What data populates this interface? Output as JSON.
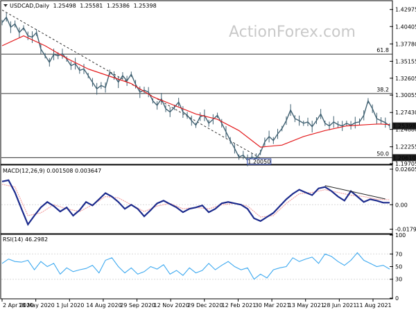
{
  "colors": {
    "price": "#3f6071",
    "ma": "#e31a1c",
    "macd": "#1b2a8c",
    "signal": "#f4a0a0",
    "rsi": "#3da9f0",
    "level_line": "#303030",
    "trend_dash": "#303030",
    "current_box": "#1f1f1f",
    "low_box": "#1f3aa6",
    "grid": "#d8d8d8",
    "watermark": "#c9c9c9"
  },
  "watermark": "ActionForex.com",
  "chart_data": [
    {
      "type": "line",
      "title": "USDCAD,Daily",
      "ohlc": {
        "open": "1.25498",
        "high": "1.25581",
        "low": "1.25386",
        "close": "1.25398"
      },
      "ylim": [
        1.1971,
        1.442
      ],
      "y_ticks": [
        "1.42975",
        "1.40405",
        "1.37780",
        "1.35155",
        "1.32605",
        "1.30055",
        "1.27430",
        "1.24880",
        "1.22255",
        "1.19705"
      ],
      "x_ticks": [
        "2 Apr 2020",
        "18 May 2020",
        "1 Jul 2020",
        "14 Aug 2020",
        "29 Sep 2020",
        "12 Nov 2020",
        "29 Dec 2020",
        "12 Feb 2021",
        "30 Mar 2021",
        "13 May 2021",
        "28 Jun 2021",
        "11 Aug 2021"
      ],
      "series": [
        {
          "style": "close",
          "x": [
            0,
            4,
            8,
            12,
            16,
            20,
            24,
            28,
            32,
            36,
            40,
            44,
            48,
            52,
            56,
            60,
            64,
            68,
            72,
            76,
            80,
            84,
            88,
            92,
            96,
            100,
            104,
            108,
            112,
            116,
            120,
            124,
            128,
            132,
            136,
            140,
            144,
            148,
            152,
            156,
            160,
            164,
            168,
            172,
            176,
            180,
            184,
            188,
            192,
            196,
            200,
            204,
            208,
            212,
            216,
            220,
            224,
            228,
            232,
            236,
            240,
            244,
            248,
            252,
            256,
            260,
            264,
            268,
            272,
            276,
            280,
            284,
            288,
            292,
            296,
            300,
            304,
            308,
            312,
            316,
            320,
            324,
            328,
            332,
            336,
            340,
            344,
            348,
            352,
            356,
            360
          ],
          "values": [
            1.41,
            1.418,
            1.403,
            1.408,
            1.395,
            1.402,
            1.39,
            1.388,
            1.395,
            1.37,
            1.36,
            1.35,
            1.362,
            1.36,
            1.363,
            1.355,
            1.345,
            1.348,
            1.338,
            1.34,
            1.33,
            1.32,
            1.31,
            1.315,
            1.312,
            1.335,
            1.33,
            1.32,
            1.33,
            1.322,
            1.332,
            1.317,
            1.305,
            1.308,
            1.305,
            1.292,
            1.285,
            1.295,
            1.28,
            1.275,
            1.282,
            1.29,
            1.275,
            1.27,
            1.262,
            1.255,
            1.268,
            1.27,
            1.258,
            1.264,
            1.27,
            1.258,
            1.245,
            1.232,
            1.22,
            1.207,
            1.21,
            1.202,
            1.207,
            1.205,
            1.214,
            1.23,
            1.238,
            1.232,
            1.242,
            1.25,
            1.262,
            1.278,
            1.265,
            1.262,
            1.258,
            1.26,
            1.253,
            1.262,
            1.272,
            1.258,
            1.254,
            1.26,
            1.256,
            1.254,
            1.258,
            1.255,
            1.259,
            1.26,
            1.27,
            1.292,
            1.28,
            1.265,
            1.262,
            1.259,
            1.254
          ]
        },
        {
          "style": "moving-average",
          "x": [
            0,
            20,
            40,
            60,
            80,
            100,
            120,
            140,
            160,
            180,
            200,
            220,
            240,
            260,
            280,
            300,
            320,
            340,
            350,
            360
          ],
          "values": [
            1.375,
            1.39,
            1.375,
            1.356,
            1.34,
            1.329,
            1.318,
            1.298,
            1.285,
            1.272,
            1.264,
            1.247,
            1.222,
            1.225,
            1.238,
            1.247,
            1.254,
            1.256,
            1.257,
            1.256
          ]
        }
      ],
      "levels": [
        {
          "label": "61.8",
          "value": 1.3623
        },
        {
          "label": "38.2",
          "value": 1.303
        },
        {
          "label": "50.0",
          "value": 1.2061
        }
      ],
      "trendline": {
        "x": [
          0,
          242
        ],
        "values": [
          1.429,
          1.2035
        ]
      },
      "current_label": "1.25398",
      "support_label": "1.20610",
      "low_label": "1.20050"
    },
    {
      "type": "line",
      "title": "MACD(12,26,9) 0.001508 0.003647",
      "ylim": [
        -0.0207,
        0.0286
      ],
      "y_ticks": [
        "0.026055",
        "0.00",
        "-0.017914"
      ],
      "series": [
        {
          "style": "macd",
          "x": [
            0,
            6,
            12,
            18,
            24,
            30,
            36,
            42,
            48,
            54,
            60,
            66,
            72,
            78,
            84,
            90,
            96,
            102,
            108,
            114,
            120,
            126,
            132,
            138,
            144,
            150,
            156,
            162,
            168,
            174,
            180,
            186,
            192,
            198,
            204,
            210,
            216,
            222,
            228,
            234,
            240,
            246,
            252,
            258,
            264,
            270,
            276,
            282,
            288,
            294,
            300,
            306,
            312,
            318,
            324,
            330,
            336,
            342,
            348,
            354,
            360
          ],
          "values": [
            0.017,
            0.018,
            0.009,
            -0.003,
            -0.0145,
            -0.008,
            -0.002,
            0.002,
            -0.001,
            -0.005,
            -0.002,
            -0.008,
            -0.004,
            0.002,
            -0.0005,
            0.004,
            0.0085,
            0.006,
            0.002,
            -0.003,
            0.0,
            -0.003,
            -0.0085,
            -0.004,
            0.001,
            0.003,
            0.0005,
            -0.002,
            -0.0055,
            -0.003,
            -0.002,
            -0.0005,
            -0.0055,
            -0.003,
            0.001,
            0.002,
            0.001,
            0.0,
            -0.003,
            -0.01,
            -0.012,
            -0.009,
            -0.006,
            -0.001,
            0.004,
            0.008,
            0.011,
            0.009,
            0.007,
            0.012,
            0.013,
            0.01,
            0.006,
            0.003,
            0.01,
            0.006,
            0.002,
            0.004,
            0.003,
            0.0015,
            0.0015
          ]
        },
        {
          "style": "signal",
          "x": [
            0,
            12,
            24,
            36,
            48,
            60,
            72,
            84,
            96,
            108,
            120,
            132,
            144,
            156,
            168,
            180,
            192,
            204,
            216,
            228,
            240,
            252,
            264,
            276,
            288,
            300,
            312,
            324,
            336,
            348,
            360
          ],
          "values": [
            0.015,
            0.013,
            -0.008,
            -0.006,
            0.0,
            -0.003,
            -0.005,
            0.0,
            0.006,
            0.005,
            0.0,
            -0.005,
            -0.001,
            0.001,
            -0.003,
            -0.002,
            -0.003,
            0.0,
            0.001,
            -0.001,
            -0.009,
            -0.008,
            0.001,
            0.008,
            0.009,
            0.011,
            0.009,
            0.007,
            0.006,
            0.004,
            0.0036
          ]
        }
      ],
      "trendline": {
        "x": [
          300,
          356
        ],
        "values": [
          0.014,
          0.0042
        ]
      }
    },
    {
      "type": "line",
      "title": "RSI(14) 46.2982",
      "ylim": [
        0,
        100
      ],
      "y_ticks": [
        "100",
        "70",
        "50",
        "30",
        "0"
      ],
      "series": [
        {
          "style": "rsi",
          "x": [
            0,
            6,
            12,
            18,
            24,
            30,
            36,
            42,
            48,
            54,
            60,
            66,
            72,
            78,
            84,
            90,
            96,
            102,
            108,
            114,
            120,
            126,
            132,
            138,
            144,
            150,
            156,
            162,
            168,
            174,
            180,
            186,
            192,
            198,
            204,
            210,
            216,
            222,
            228,
            234,
            240,
            246,
            252,
            258,
            264,
            270,
            276,
            282,
            288,
            294,
            300,
            306,
            312,
            318,
            324,
            330,
            336,
            342,
            348,
            354,
            360
          ],
          "values": [
            55,
            62,
            58,
            57,
            60,
            45,
            58,
            50,
            55,
            38,
            48,
            42,
            45,
            47,
            52,
            40,
            60,
            64,
            50,
            40,
            48,
            38,
            42,
            50,
            46,
            53,
            38,
            44,
            36,
            48,
            40,
            44,
            55,
            45,
            52,
            58,
            50,
            45,
            48,
            30,
            38,
            32,
            45,
            48,
            50,
            64,
            58,
            62,
            65,
            55,
            70,
            66,
            58,
            52,
            60,
            72,
            60,
            55,
            50,
            52,
            46
          ]
        }
      ]
    }
  ]
}
